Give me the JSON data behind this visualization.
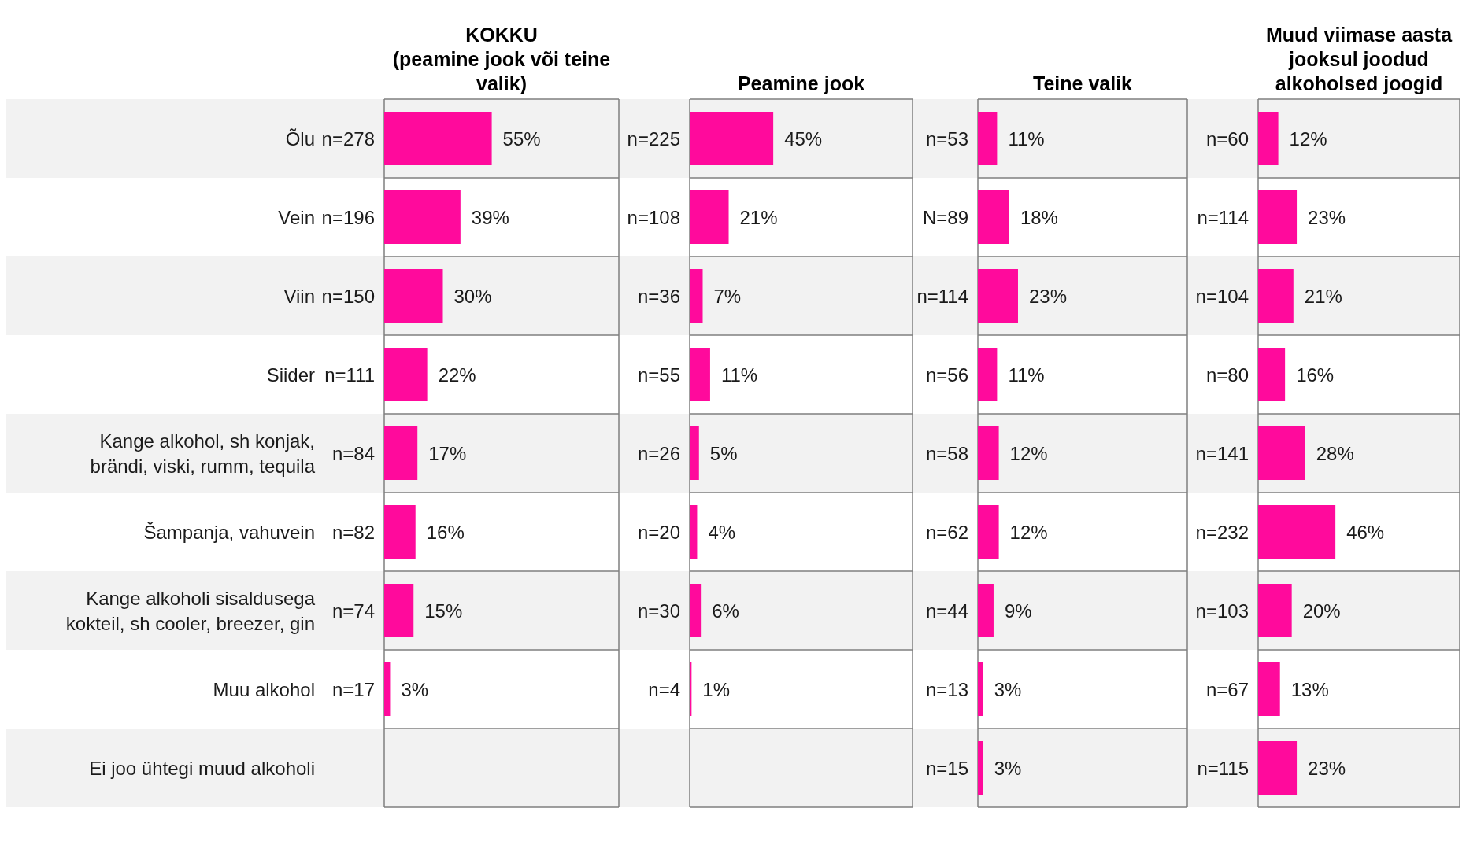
{
  "chart_data": [
    {
      "type": "bar",
      "orientation": "horizontal",
      "title": "KOKKU",
      "subtitle": "(peamine jook või teine valik)",
      "categories": [
        "Õlu",
        "Vein",
        "Viin",
        "Siider",
        "Kange alkohol, sh konjak, brändi, viski, rumm, tequila",
        "Šampanja, vahuvein",
        "Kange alkoholi sisaldusega kokteil, sh cooler, breezer, gin",
        "Muu alkohol",
        "Ei joo ühtegi muud alkoholi"
      ],
      "values": [
        55,
        39,
        30,
        22,
        17,
        16,
        15,
        3,
        null
      ],
      "value_labels": [
        "55%",
        "39%",
        "30%",
        "22%",
        "17%",
        "16%",
        "15%",
        "3%",
        null
      ],
      "annotations": [
        "n=278",
        "n=196",
        "n=150",
        "n=111",
        "n=84",
        "n=82",
        "n=74",
        "n=17"
      ],
      "color": "#ff0a9c",
      "xlim": [
        0,
        120
      ],
      "grid": true
    },
    {
      "type": "bar",
      "orientation": "horizontal",
      "title": "Peamine jook",
      "categories": [
        "n=225",
        "n=108",
        "n=36",
        "n=55",
        "n=26",
        "n=20",
        "n=30",
        "n=4",
        null
      ],
      "values": [
        45,
        21,
        7,
        11,
        5,
        4,
        6,
        1,
        null
      ],
      "value_labels": [
        "45%",
        "21%",
        "7%",
        "11%",
        "5%",
        "4%",
        "6%",
        "1%",
        null
      ],
      "color": "#ff0a9c",
      "xlim": [
        0,
        120
      ],
      "grid": true
    },
    {
      "type": "bar",
      "orientation": "horizontal",
      "title": "Teine valik",
      "categories": [
        "n=53",
        "N=89",
        "n=114",
        "n=56",
        "n=58",
        "n=62",
        "n=44",
        "n=13",
        "n=15"
      ],
      "values": [
        11,
        18,
        23,
        11,
        12,
        12,
        9,
        3,
        3
      ],
      "value_labels": [
        "11%",
        "18%",
        "23%",
        "11%",
        "12%",
        "12%",
        "9%",
        "3%",
        "3%"
      ],
      "color": "#ff0a9c",
      "xlim": [
        0,
        120
      ],
      "grid": true
    },
    {
      "type": "bar",
      "orientation": "horizontal",
      "title": "Muud viimase aasta jooksul joodud alkoholsed joogid",
      "categories": [
        "n=60",
        "n=114",
        "n=104",
        "n=80",
        "n=141",
        "n=232",
        "n=103",
        "n=67",
        "n=115"
      ],
      "values": [
        12,
        23,
        21,
        16,
        28,
        46,
        20,
        13,
        23
      ],
      "value_labels": [
        "12%",
        "23%",
        "21%",
        "16%",
        "28%",
        "46%",
        "20%",
        "13%",
        "23%"
      ],
      "color": "#ff0a9c",
      "xlim": [
        0,
        120
      ],
      "grid": true
    }
  ]
}
